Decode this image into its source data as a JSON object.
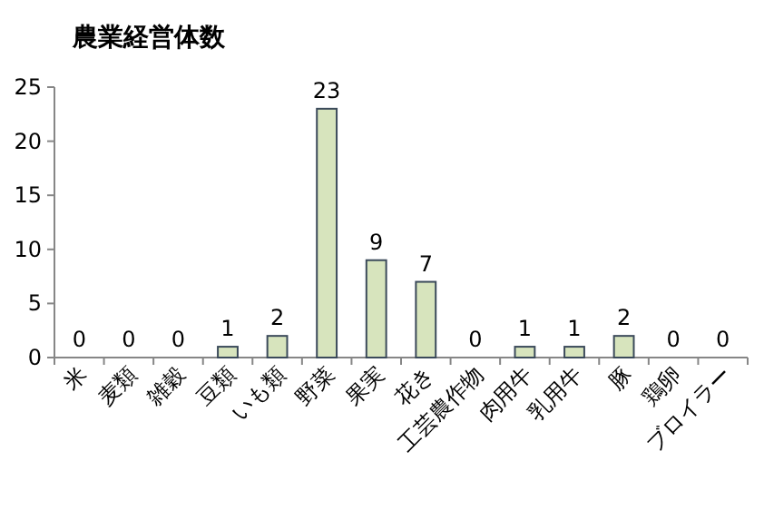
{
  "chart_data": {
    "type": "bar",
    "title": "農業経営体数",
    "categories": [
      "米",
      "麦類",
      "雑穀",
      "豆類",
      "いも類",
      "野菜",
      "果実",
      "花き",
      "工芸農作物",
      "肉用牛",
      "乳用牛",
      "豚",
      "鶏卵",
      "ブロイラー"
    ],
    "values": [
      0,
      0,
      0,
      1,
      2,
      23,
      9,
      7,
      0,
      1,
      1,
      2,
      0,
      0
    ],
    "color": "#d7e4bd",
    "ylim": [
      0,
      25
    ],
    "yticks": [
      0,
      5,
      10,
      15,
      20,
      25
    ],
    "data_labels": true
  }
}
